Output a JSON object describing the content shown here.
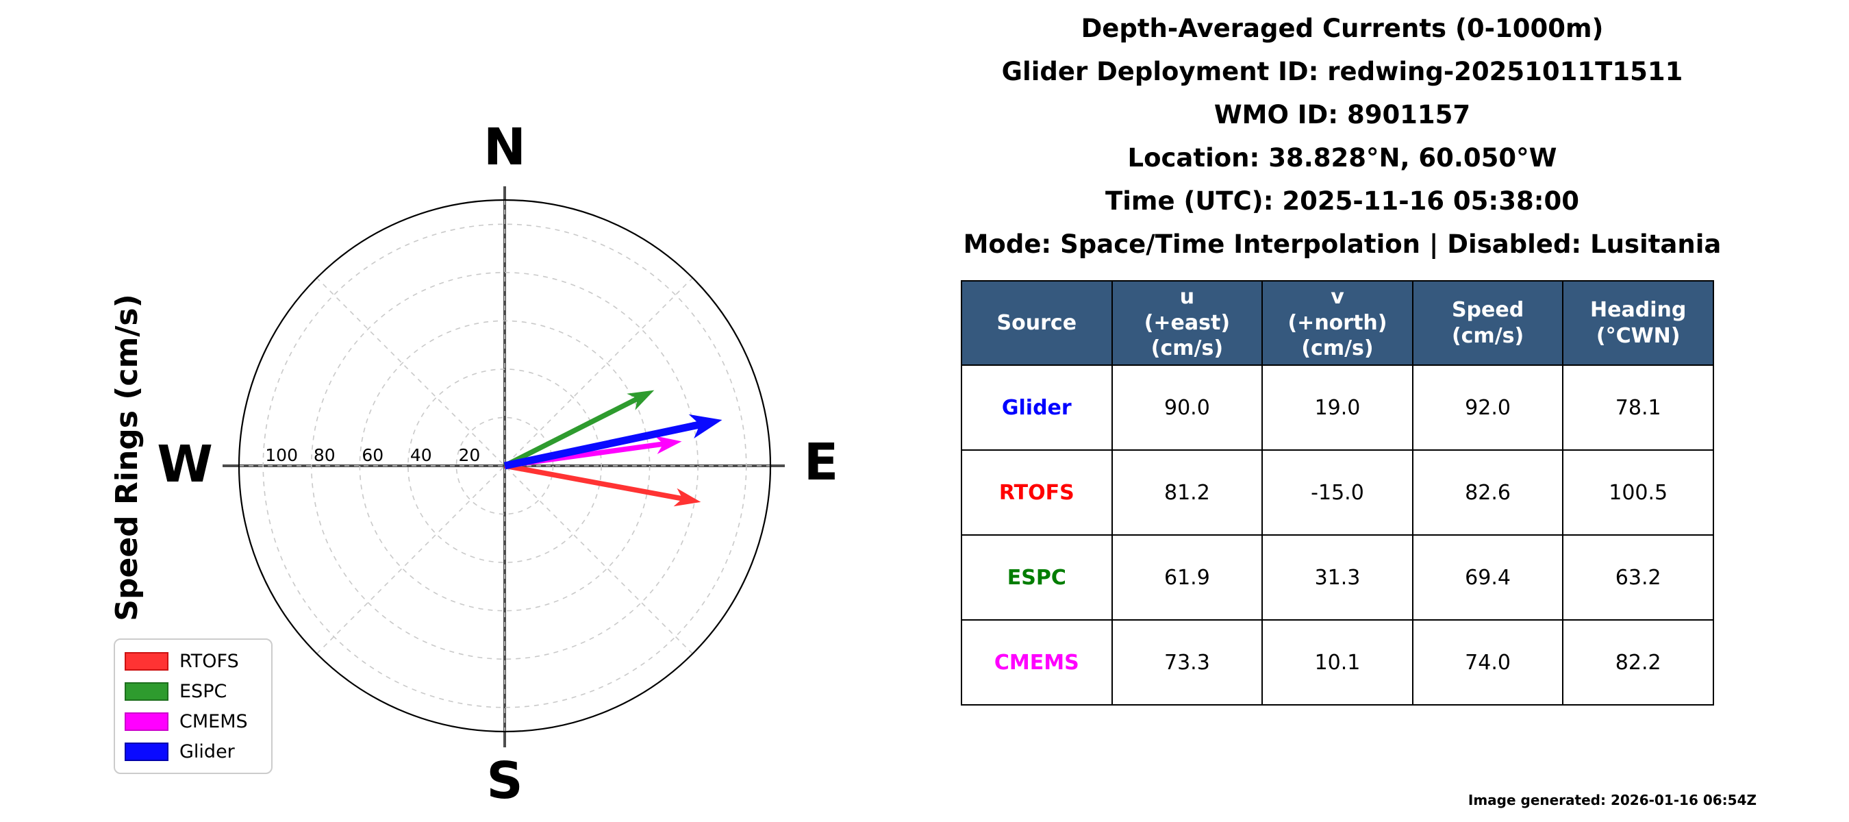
{
  "figure": {
    "title_lines": [
      "Depth-Averaged Currents (0-1000m)",
      "Glider Deployment ID: redwing-20251011T1511",
      "WMO ID: 8901157",
      "Location: 38.828°N, 60.050°W",
      "Time (UTC): 2025-11-16 05:38:00",
      "Mode: Space/Time Interpolation | Disabled: Lusitania"
    ],
    "footer_note": "Image generated: 2026-01-16 06:54Z"
  },
  "table": {
    "headers": [
      "Source",
      "u\n(+east)\n(cm/s)",
      "v\n(+north)\n(cm/s)",
      "Speed\n(cm/s)",
      "Heading\n(°CWN)"
    ],
    "header_bg": "#36597E",
    "header_text_color": "#FFFFFF",
    "rows": [
      {
        "source": "Glider",
        "color": "#0000FF",
        "u": "90.0",
        "v": "19.0",
        "speed": "92.0",
        "heading": "78.1"
      },
      {
        "source": "RTOFS",
        "color": "#FF0000",
        "u": "81.2",
        "v": "-15.0",
        "speed": "82.6",
        "heading": "100.5"
      },
      {
        "source": "ESPC",
        "color": "#007D00",
        "u": "61.9",
        "v": "31.3",
        "speed": "69.4",
        "heading": "63.2"
      },
      {
        "source": "CMEMS",
        "color": "#FF00FF",
        "u": "73.3",
        "v": "10.1",
        "speed": "74.0",
        "heading": "82.2"
      }
    ]
  },
  "chart_data": {
    "type": "polar_quiver",
    "description": "Depth-averaged ocean current vectors drawn from plot origin; u = east component, v = north component, speed in cm/s, heading in degrees clockwise from north",
    "rings_label": "Speed Rings (cm/s)",
    "compass": {
      "north": "N",
      "east": "E",
      "south": "S",
      "west": "W"
    },
    "ring_values": [
      20,
      40,
      60,
      80,
      100
    ],
    "r_max": 110,
    "grid_on": true,
    "legend_position": "lower left",
    "legend_order": [
      "RTOFS",
      "ESPC",
      "CMEMS",
      "Glider"
    ],
    "grid_color": "#C9C9C9",
    "axis_cross_color": "#4D4D4D",
    "outer_circle_color": "#000000",
    "series": [
      {
        "name": "RTOFS",
        "color": "#FF3333",
        "edge": "#CC1111",
        "u": 81.2,
        "v": -15.0,
        "speed": 82.6,
        "heading_cwn": 100.5
      },
      {
        "name": "ESPC",
        "color": "#2E9B2E",
        "edge": "#1D6F1D",
        "u": 61.9,
        "v": 31.3,
        "speed": 69.4,
        "heading_cwn": 63.2
      },
      {
        "name": "CMEMS",
        "color": "#FF00FF",
        "edge": "#CC00CC",
        "u": 73.3,
        "v": 10.1,
        "speed": 74.0,
        "heading_cwn": 82.2
      },
      {
        "name": "Glider",
        "color": "#0A0AFF",
        "edge": "#0000AA",
        "u": 90.0,
        "v": 19.0,
        "speed": 92.0,
        "heading_cwn": 78.1
      }
    ]
  }
}
